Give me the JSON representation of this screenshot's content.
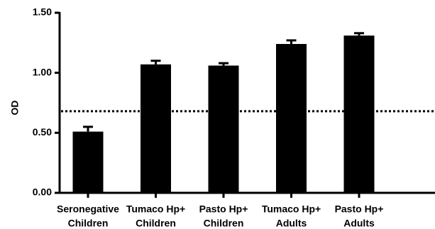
{
  "chart_data": {
    "type": "bar",
    "title": "",
    "xlabel": "",
    "ylabel": "OD",
    "ylim": [
      0,
      1.5
    ],
    "yticks": [
      "0.00",
      "0.50",
      "1.00",
      "1.50"
    ],
    "categories": [
      [
        "Seronegative",
        "Children"
      ],
      [
        "Tumaco Hp+",
        "Children"
      ],
      [
        "Pasto Hp+",
        "Children"
      ],
      [
        "Tumaco Hp+",
        "Adults"
      ],
      [
        "Pasto Hp+",
        "Adults"
      ]
    ],
    "values": [
      0.51,
      1.07,
      1.06,
      1.24,
      1.31
    ],
    "errors": [
      0.04,
      0.03,
      0.02,
      0.03,
      0.02
    ],
    "reference_line": 0.68,
    "bar_color": "#000000",
    "grid": false
  }
}
